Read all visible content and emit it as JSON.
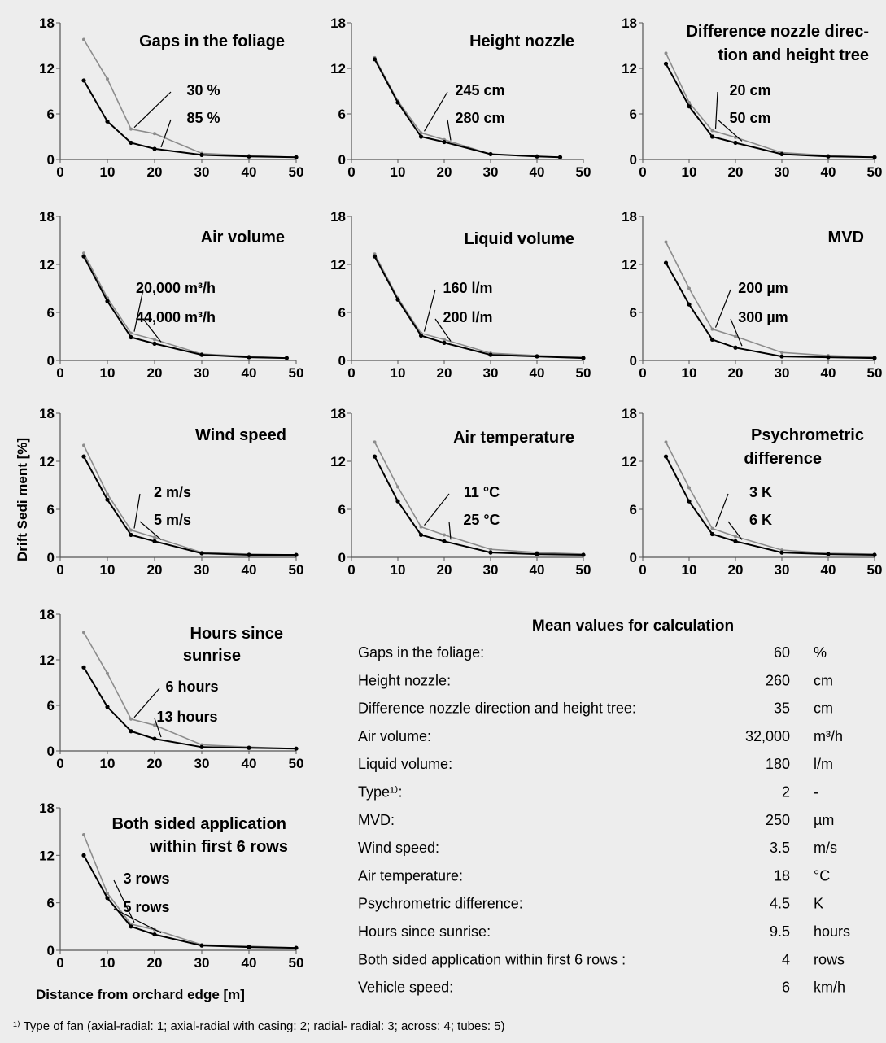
{
  "y_axis_label": "Drift Sedi ment  [%]",
  "x_axis_label": "Distance from orchard edge [m]",
  "colors": {
    "dark": "#000000",
    "light": "#8c8c8c",
    "frame": "#555555"
  },
  "chart_data": [
    {
      "type": "line",
      "title_lines": [
        "Gaps in the foliage"
      ],
      "ylim": [
        0,
        18
      ],
      "yticks": [
        0,
        6,
        12,
        18
      ],
      "xlim": [
        0,
        50
      ],
      "xticks": [
        0,
        10,
        20,
        30,
        40,
        50
      ],
      "series": [
        {
          "name": "30 %",
          "x": [
            5,
            10,
            15,
            20,
            30,
            40,
            50
          ],
          "values": [
            15.8,
            10.6,
            4.0,
            3.4,
            0.8,
            0.5,
            0.3
          ]
        },
        {
          "name": "85 %",
          "x": [
            5,
            10,
            15,
            20,
            30,
            40,
            50
          ],
          "values": [
            10.4,
            5.0,
            2.2,
            1.4,
            0.6,
            0.4,
            0.3
          ]
        }
      ]
    },
    {
      "type": "line",
      "title_lines": [
        "Height nozzle"
      ],
      "ylim": [
        0,
        18
      ],
      "yticks": [
        0,
        6,
        12,
        18
      ],
      "xlim": [
        0,
        50
      ],
      "xticks": [
        0,
        10,
        20,
        30,
        40,
        50
      ],
      "series": [
        {
          "name": "245 cm",
          "x": [
            5,
            10,
            15,
            20,
            30,
            40,
            45
          ],
          "values": [
            13.4,
            7.7,
            3.5,
            2.6,
            0.7,
            0.4,
            0.3
          ]
        },
        {
          "name": "280 cm",
          "x": [
            5,
            10,
            15,
            20,
            30,
            40,
            45
          ],
          "values": [
            13.2,
            7.5,
            3.0,
            2.3,
            0.7,
            0.4,
            0.3
          ]
        }
      ]
    },
    {
      "type": "line",
      "title_lines": [
        "Difference nozzle direc-",
        "tion and height tree"
      ],
      "ylim": [
        0,
        18
      ],
      "yticks": [
        0,
        6,
        12,
        18
      ],
      "xlim": [
        0,
        50
      ],
      "xticks": [
        0,
        10,
        20,
        30,
        40,
        50
      ],
      "series": [
        {
          "name": "20 cm",
          "x": [
            5,
            10,
            15,
            20,
            30,
            40,
            50
          ],
          "values": [
            14.0,
            7.5,
            3.8,
            2.9,
            0.9,
            0.5,
            0.3
          ]
        },
        {
          "name": "50 cm",
          "x": [
            5,
            10,
            15,
            20,
            30,
            40,
            50
          ],
          "values": [
            12.6,
            7.0,
            3.0,
            2.2,
            0.7,
            0.4,
            0.3
          ]
        }
      ]
    },
    {
      "type": "line",
      "title_lines": [
        "Air volume"
      ],
      "ylim": [
        0,
        18
      ],
      "yticks": [
        0,
        6,
        12,
        18
      ],
      "xlim": [
        0,
        50
      ],
      "xticks": [
        0,
        10,
        20,
        30,
        40,
        50
      ],
      "series": [
        {
          "name": "20,000 m³/h",
          "x": [
            5,
            10,
            15,
            20,
            30,
            40,
            48
          ],
          "values": [
            13.4,
            7.8,
            3.4,
            2.6,
            0.8,
            0.5,
            0.3
          ]
        },
        {
          "name": "44,000 m³/h",
          "x": [
            5,
            10,
            15,
            20,
            30,
            40,
            48
          ],
          "values": [
            13.0,
            7.4,
            2.9,
            2.1,
            0.7,
            0.4,
            0.3
          ]
        }
      ]
    },
    {
      "type": "line",
      "title_lines": [
        "Liquid volume"
      ],
      "ylim": [
        0,
        18
      ],
      "yticks": [
        0,
        6,
        12,
        18
      ],
      "xlim": [
        0,
        50
      ],
      "xticks": [
        0,
        10,
        20,
        30,
        40,
        50
      ],
      "series": [
        {
          "name": "160 l/m",
          "x": [
            5,
            10,
            15,
            20,
            30,
            40,
            50
          ],
          "values": [
            13.3,
            7.8,
            3.4,
            2.6,
            0.9,
            0.6,
            0.4
          ]
        },
        {
          "name": "200 l/m",
          "x": [
            5,
            10,
            15,
            20,
            30,
            40,
            50
          ],
          "values": [
            13.0,
            7.6,
            3.1,
            2.2,
            0.7,
            0.5,
            0.3
          ]
        }
      ]
    },
    {
      "type": "line",
      "title_lines": [
        "MVD"
      ],
      "ylim": [
        0,
        18
      ],
      "yticks": [
        0,
        6,
        12,
        18
      ],
      "xlim": [
        0,
        50
      ],
      "xticks": [
        0,
        10,
        20,
        30,
        40,
        50
      ],
      "series": [
        {
          "name": "200 µm",
          "x": [
            5,
            10,
            15,
            20,
            30,
            40,
            50
          ],
          "values": [
            14.8,
            9.0,
            3.9,
            3.0,
            1.0,
            0.6,
            0.4
          ]
        },
        {
          "name": "300 µm",
          "x": [
            5,
            10,
            15,
            20,
            30,
            40,
            50
          ],
          "values": [
            12.2,
            7.0,
            2.6,
            1.6,
            0.5,
            0.4,
            0.3
          ]
        }
      ]
    },
    {
      "type": "line",
      "title_lines": [
        "Wind speed"
      ],
      "ylim": [
        0,
        18
      ],
      "yticks": [
        0,
        6,
        12,
        18
      ],
      "xlim": [
        0,
        50
      ],
      "xticks": [
        0,
        10,
        20,
        30,
        40,
        50
      ],
      "series": [
        {
          "name": "2 m/s",
          "x": [
            5,
            10,
            15,
            20,
            30,
            40,
            50
          ],
          "values": [
            14.0,
            7.9,
            3.4,
            2.5,
            0.6,
            0.4,
            0.3
          ]
        },
        {
          "name": "5 m/s",
          "x": [
            5,
            10,
            15,
            20,
            30,
            40,
            50
          ],
          "values": [
            12.6,
            7.2,
            2.8,
            2.0,
            0.5,
            0.3,
            0.3
          ]
        }
      ]
    },
    {
      "type": "line",
      "title_lines": [
        "Air temperature"
      ],
      "ylim": [
        0,
        18
      ],
      "yticks": [
        0,
        6,
        12,
        18
      ],
      "xlim": [
        0,
        50
      ],
      "xticks": [
        0,
        10,
        20,
        30,
        40,
        50
      ],
      "series": [
        {
          "name": "11 °C",
          "x": [
            5,
            10,
            15,
            20,
            30,
            40,
            50
          ],
          "values": [
            14.4,
            8.8,
            3.8,
            2.8,
            1.0,
            0.6,
            0.4
          ]
        },
        {
          "name": "25 °C",
          "x": [
            5,
            10,
            15,
            20,
            30,
            40,
            50
          ],
          "values": [
            12.6,
            7.0,
            2.8,
            2.0,
            0.6,
            0.4,
            0.3
          ]
        }
      ]
    },
    {
      "type": "line",
      "title_lines": [
        "Psychrometric",
        "difference"
      ],
      "ylim": [
        0,
        18
      ],
      "yticks": [
        0,
        6,
        12,
        18
      ],
      "xlim": [
        0,
        50
      ],
      "xticks": [
        0,
        10,
        20,
        30,
        40,
        50
      ],
      "series": [
        {
          "name": "3 K",
          "x": [
            5,
            10,
            15,
            20,
            30,
            40,
            50
          ],
          "values": [
            14.4,
            8.7,
            3.6,
            2.6,
            0.9,
            0.5,
            0.4
          ]
        },
        {
          "name": "6 K",
          "x": [
            5,
            10,
            15,
            20,
            30,
            40,
            50
          ],
          "values": [
            12.6,
            7.0,
            2.9,
            2.0,
            0.6,
            0.4,
            0.3
          ]
        }
      ]
    },
    {
      "type": "line",
      "title_lines": [
        "Hours since",
        "sunrise"
      ],
      "ylim": [
        0,
        18
      ],
      "yticks": [
        0,
        6,
        12,
        18
      ],
      "xlim": [
        0,
        50
      ],
      "xticks": [
        0,
        10,
        20,
        30,
        40,
        50
      ],
      "series": [
        {
          "name": "6 hours",
          "x": [
            5,
            10,
            15,
            20,
            30,
            40,
            50
          ],
          "values": [
            15.6,
            10.2,
            4.2,
            3.4,
            0.8,
            0.5,
            0.3
          ]
        },
        {
          "name": "13 hours",
          "x": [
            5,
            10,
            15,
            20,
            30,
            40,
            50
          ],
          "values": [
            11.0,
            5.8,
            2.6,
            1.6,
            0.5,
            0.4,
            0.3
          ]
        }
      ]
    },
    {
      "type": "line",
      "title_lines": [
        "Both sided application",
        "within first 6 rows"
      ],
      "ylim": [
        0,
        18
      ],
      "yticks": [
        0,
        6,
        12,
        18
      ],
      "xlim": [
        0,
        50
      ],
      "xticks": [
        0,
        10,
        20,
        30,
        40,
        50
      ],
      "series": [
        {
          "name": "3 rows",
          "x": [
            5,
            10,
            15,
            20,
            30,
            40,
            50
          ],
          "values": [
            14.6,
            7.2,
            3.3,
            2.6,
            0.7,
            0.5,
            0.3
          ]
        },
        {
          "name": "5 rows",
          "x": [
            5,
            10,
            15,
            20,
            30,
            40,
            50
          ],
          "values": [
            12.0,
            6.6,
            3.0,
            2.0,
            0.6,
            0.4,
            0.3
          ]
        }
      ]
    }
  ],
  "mean_table": {
    "title": "Mean values for calculation",
    "rows": [
      {
        "label": "Gaps in the foliage:",
        "value": "60",
        "unit": "%"
      },
      {
        "label": "Height nozzle:",
        "value": "260",
        "unit": "cm"
      },
      {
        "label": "Difference nozzle direction and height tree:",
        "value": "35",
        "unit": "cm"
      },
      {
        "label": "Air volume:",
        "value": "32,000",
        "unit": "m³/h"
      },
      {
        "label": "Liquid volume:",
        "value": "180",
        "unit": "l/m"
      },
      {
        "label": "Type¹⁾:",
        "value": "2",
        "unit": "-"
      },
      {
        "label": "MVD:",
        "value": "250",
        "unit": "µm"
      },
      {
        "label": "Wind speed:",
        "value": "3.5",
        "unit": "m/s"
      },
      {
        "label": "Air temperature:",
        "value": "18",
        "unit": "°C"
      },
      {
        "label": "Psychrometric difference:",
        "value": "4.5",
        "unit": "K"
      },
      {
        "label": "Hours since sunrise:",
        "value": "9.5",
        "unit": "hours"
      },
      {
        "label": "Both sided application within first 6 rows :",
        "value": "4",
        "unit": "rows"
      },
      {
        "label": "Vehicle speed:",
        "value": "6",
        "unit": "km/h"
      }
    ]
  },
  "footnote": "¹⁾ Type of fan (axial-radial: 1; axial-radial with casing: 2; radial- radial: 3; across: 4; tubes: 5)"
}
